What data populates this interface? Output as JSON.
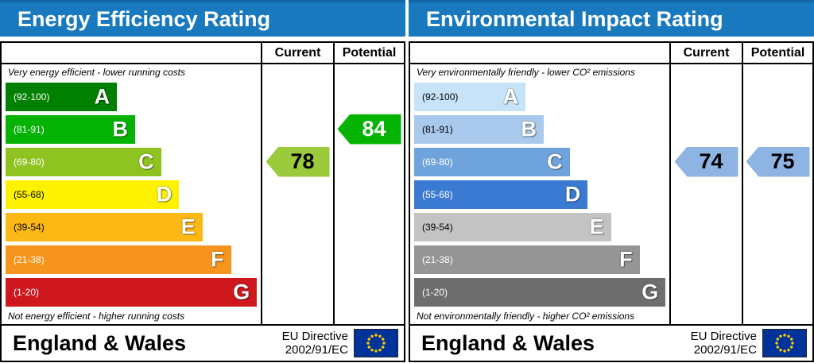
{
  "panels": [
    {
      "title": "Energy Efficiency Rating",
      "col_current": "Current",
      "col_potential": "Potential",
      "caption_top": "Very energy efficient - lower running costs",
      "caption_bottom": "Not energy efficient - higher running costs",
      "bands": [
        {
          "letter": "A",
          "range": "(92-100)",
          "color": "#008000",
          "range_color": "#ffffff",
          "width_pct": 43
        },
        {
          "letter": "B",
          "range": "(81-91)",
          "color": "#05B305",
          "range_color": "#ffffff",
          "width_pct": 50
        },
        {
          "letter": "C",
          "range": "(69-80)",
          "color": "#8FC31F",
          "range_color": "#ffffff",
          "width_pct": 60
        },
        {
          "letter": "D",
          "range": "(55-68)",
          "color": "#FFF200",
          "range_color": "#000000",
          "width_pct": 67
        },
        {
          "letter": "E",
          "range": "(39-54)",
          "color": "#FCB814",
          "range_color": "#000000",
          "width_pct": 76
        },
        {
          "letter": "F",
          "range": "(21-38)",
          "color": "#F7941D",
          "range_color": "#ffffff",
          "width_pct": 87
        },
        {
          "letter": "G",
          "range": "(1-20)",
          "color": "#CE181E",
          "range_color": "#ffffff",
          "width_pct": 97
        }
      ],
      "current": {
        "value": "78",
        "color": "#9BCA3C",
        "text_color": "#000000",
        "band": "C"
      },
      "potential": {
        "value": "84",
        "color": "#05B305",
        "text_color": "#ffffff",
        "band": "B"
      },
      "footer": {
        "region": "England & Wales",
        "directive_line1": "EU Directive",
        "directive_line2": "2002/91/EC",
        "flag_color": "#003399",
        "star_color": "#FFCC00"
      }
    },
    {
      "title": "Environmental Impact Rating",
      "col_current": "Current",
      "col_potential": "Potential",
      "caption_top": "Very environmentally friendly - lower CO² emissions",
      "caption_bottom": "Not environmentally friendly - higher CO² emissions",
      "bands": [
        {
          "letter": "A",
          "range": "(92-100)",
          "color": "#C6E3F8",
          "range_color": "#000000",
          "width_pct": 43
        },
        {
          "letter": "B",
          "range": "(81-91)",
          "color": "#A9CAEC",
          "range_color": "#000000",
          "width_pct": 50
        },
        {
          "letter": "C",
          "range": "(69-80)",
          "color": "#6FA3DC",
          "range_color": "#ffffff",
          "width_pct": 60
        },
        {
          "letter": "D",
          "range": "(55-68)",
          "color": "#3B7AD3",
          "range_color": "#ffffff",
          "width_pct": 67
        },
        {
          "letter": "E",
          "range": "(39-54)",
          "color": "#C3C3C3",
          "range_color": "#000000",
          "width_pct": 76
        },
        {
          "letter": "F",
          "range": "(21-38)",
          "color": "#959595",
          "range_color": "#ffffff",
          "width_pct": 87
        },
        {
          "letter": "G",
          "range": "(1-20)",
          "color": "#6E6E6E",
          "range_color": "#ffffff",
          "width_pct": 97
        }
      ],
      "current": {
        "value": "74",
        "color": "#8EB4E3",
        "text_color": "#000000",
        "band": "C"
      },
      "potential": {
        "value": "75",
        "color": "#8EB4E3",
        "text_color": "#000000",
        "band": "C"
      },
      "footer": {
        "region": "England & Wales",
        "directive_line1": "EU Directive",
        "directive_line2": "2002/91/EC",
        "flag_color": "#003399",
        "star_color": "#FFCC00"
      }
    }
  ],
  "chart_data": [
    {
      "type": "bar",
      "title": "Energy Efficiency Rating",
      "categories": [
        "A",
        "B",
        "C",
        "D",
        "E",
        "F",
        "G"
      ],
      "band_ranges": [
        "92-100",
        "81-91",
        "69-80",
        "55-68",
        "39-54",
        "21-38",
        "1-20"
      ],
      "band_widths_pct": [
        43,
        50,
        60,
        67,
        76,
        87,
        97
      ],
      "current": 78,
      "potential": 84,
      "current_band": "C",
      "potential_band": "B",
      "top_label": "Very energy efficient - lower running costs",
      "bottom_label": "Not energy efficient - higher running costs"
    },
    {
      "type": "bar",
      "title": "Environmental Impact Rating",
      "categories": [
        "A",
        "B",
        "C",
        "D",
        "E",
        "F",
        "G"
      ],
      "band_ranges": [
        "92-100",
        "81-91",
        "69-80",
        "55-68",
        "39-54",
        "21-38",
        "1-20"
      ],
      "band_widths_pct": [
        43,
        50,
        60,
        67,
        76,
        87,
        97
      ],
      "current": 74,
      "potential": 75,
      "current_band": "C",
      "potential_band": "C",
      "top_label": "Very environmentally friendly - lower CO² emissions",
      "bottom_label": "Not environmentally friendly - higher CO² emissions"
    }
  ]
}
